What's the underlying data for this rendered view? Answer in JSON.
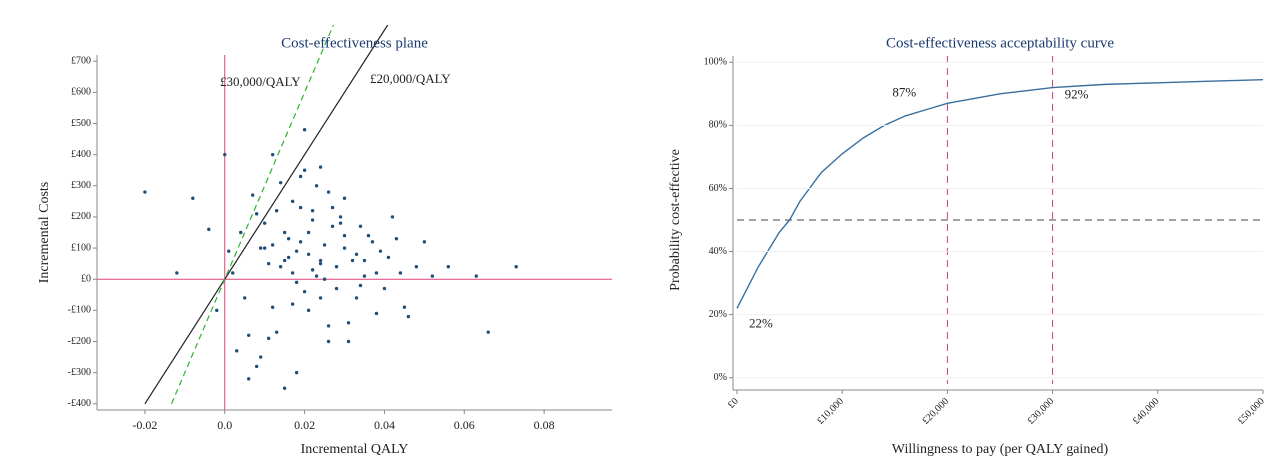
{
  "chart_data": [
    {
      "type": "scatter",
      "title": "Cost-effectiveness plane",
      "x_label": "Incremental QALY",
      "y_label": "Incremental Costs",
      "color": "#1f4e79",
      "x": [
        0.021,
        0.015,
        0.028,
        0.008,
        0.034,
        0.019,
        0.024,
        0.012,
        0.03,
        0.017,
        0.002,
        0.041,
        0.026,
        0.01,
        0.022,
        0.036,
        0.005,
        0.018,
        0.031,
        0.014,
        0.025,
        0.044,
        -0.004,
        0.02,
        0.029,
        0.011,
        0.038,
        0.016,
        0.023,
        0.007,
        0.033,
        0.013,
        0.027,
        0.048,
        0.001,
        0.019,
        0.035,
        0.009,
        0.024,
        0.04,
        -0.008,
        0.021,
        0.03,
        0.015,
        0.052,
        0.003,
        0.026,
        0.018,
        0.037,
        0.012,
        0.022,
        0.006,
        0.032,
        0.043,
        0.017,
        -0.012,
        0.028,
        0.01,
        0.02,
        0.046,
        0.014,
        0.034,
        0.024,
        0.004,
        0.039,
        0.019,
        0.056,
        0.011,
        0.027,
        -0.02,
        0.031,
        0.016,
        0.023,
        0.008,
        0.042,
        0.025,
        0.013,
        0.063,
        0.018,
        0.035,
        0.0,
        0.029,
        0.021,
        0.05,
        0.009,
        0.033,
        0.015,
        0.073,
        0.026,
        -0.002,
        0.038,
        0.02,
        0.012,
        0.045,
        0.024,
        0.006,
        0.03,
        0.017,
        0.066,
        0.022
      ],
      "values": [
        80,
        150,
        40,
        210,
        -20,
        120,
        60,
        -90,
        100,
        250,
        20,
        70,
        -150,
        180,
        30,
        140,
        -60,
        90,
        -200,
        310,
        110,
        20,
        160,
        -40,
        200,
        50,
        -110,
        130,
        10,
        270,
        80,
        -170,
        170,
        40,
        90,
        230,
        10,
        -250,
        360,
        -30,
        260,
        -100,
        140,
        60,
        10,
        -230,
        280,
        -10,
        120,
        400,
        190,
        -320,
        60,
        130,
        -80,
        20,
        -30,
        100,
        480,
        -120,
        40,
        170,
        -60,
        150,
        90,
        330,
        40,
        -190,
        230,
        280,
        -140,
        70,
        300,
        -280,
        200,
        0,
        220,
        10,
        -300,
        60,
        400,
        180,
        150,
        120,
        100,
        -60,
        -350,
        40,
        -200,
        -100,
        20,
        350,
        110,
        -90,
        50,
        -180,
        260,
        20,
        -170,
        220
      ],
      "xlim": [
        -0.032,
        0.097
      ],
      "ylim": [
        -420,
        720
      ],
      "xticks": [
        -0.02,
        {
          "value": 0,
          "label": "0.0"
        },
        0.02,
        0.04,
        0.06,
        0.08
      ],
      "yticks": [
        {
          "value": -400,
          "label": "-£400"
        },
        {
          "value": -300,
          "label": "-£300"
        },
        {
          "value": -200,
          "label": "-£200"
        },
        {
          "value": -100,
          "label": "-£100"
        },
        {
          "value": 0,
          "label": "£0"
        },
        {
          "value": 100,
          "label": "£100"
        },
        {
          "value": 200,
          "label": "£200"
        },
        {
          "value": 300,
          "label": "£300"
        },
        {
          "value": 400,
          "label": "£400"
        },
        {
          "value": 500,
          "label": "£500"
        },
        {
          "value": 600,
          "label": "£600"
        },
        {
          "value": 700,
          "label": "£700"
        }
      ],
      "thresholds": [
        {
          "label": "£20,000/QALY",
          "slope": 20000,
          "color": "#222222",
          "dashed": false
        },
        {
          "label": "£30,000/QALY",
          "slope": 30000,
          "color": "#2db52d",
          "dashed": true
        }
      ]
    },
    {
      "type": "line",
      "title": "Cost-effectiveness acceptability curve",
      "x_label": "Willingness to pay (per QALY gained)",
      "y_label": "Probability cost-effective",
      "color": "#3a6f9c",
      "grid": true,
      "x": [
        0,
        2000,
        4000,
        5000,
        6000,
        8000,
        10000,
        12000,
        14000,
        16000,
        18000,
        20000,
        25000,
        30000,
        35000,
        40000,
        45000,
        50000
      ],
      "values": [
        22,
        35,
        46,
        50,
        56,
        65,
        71,
        76,
        80,
        83,
        85,
        87,
        90,
        92,
        93,
        93.5,
        94,
        94.5
      ],
      "xlim": [
        0,
        50000
      ],
      "ylim": [
        -2,
        102
      ],
      "xticks": [
        {
          "value": 0,
          "label": "£0"
        },
        {
          "value": 10000,
          "label": "£10,000"
        },
        {
          "value": 20000,
          "label": "£20,000"
        },
        {
          "value": 30000,
          "label": "£30,000"
        },
        {
          "value": 40000,
          "label": "£40,000"
        },
        {
          "value": 50000,
          "label": "£50,000"
        }
      ],
      "yticks": [
        {
          "value": 0,
          "label": "0%"
        },
        {
          "value": 20,
          "label": "20%"
        },
        {
          "value": 40,
          "label": "40%"
        },
        {
          "value": 60,
          "label": "60%"
        },
        {
          "value": 80,
          "label": "80%"
        },
        {
          "value": 100,
          "label": "100%"
        }
      ],
      "hlines": [
        50
      ],
      "vlines": [
        20000,
        30000
      ],
      "labeled_points": [
        {
          "x": 0,
          "y": 22,
          "label": "22%"
        },
        {
          "x": 20000,
          "y": 87,
          "label": "87%"
        },
        {
          "x": 30000,
          "y": 92,
          "label": "92%"
        }
      ]
    }
  ]
}
